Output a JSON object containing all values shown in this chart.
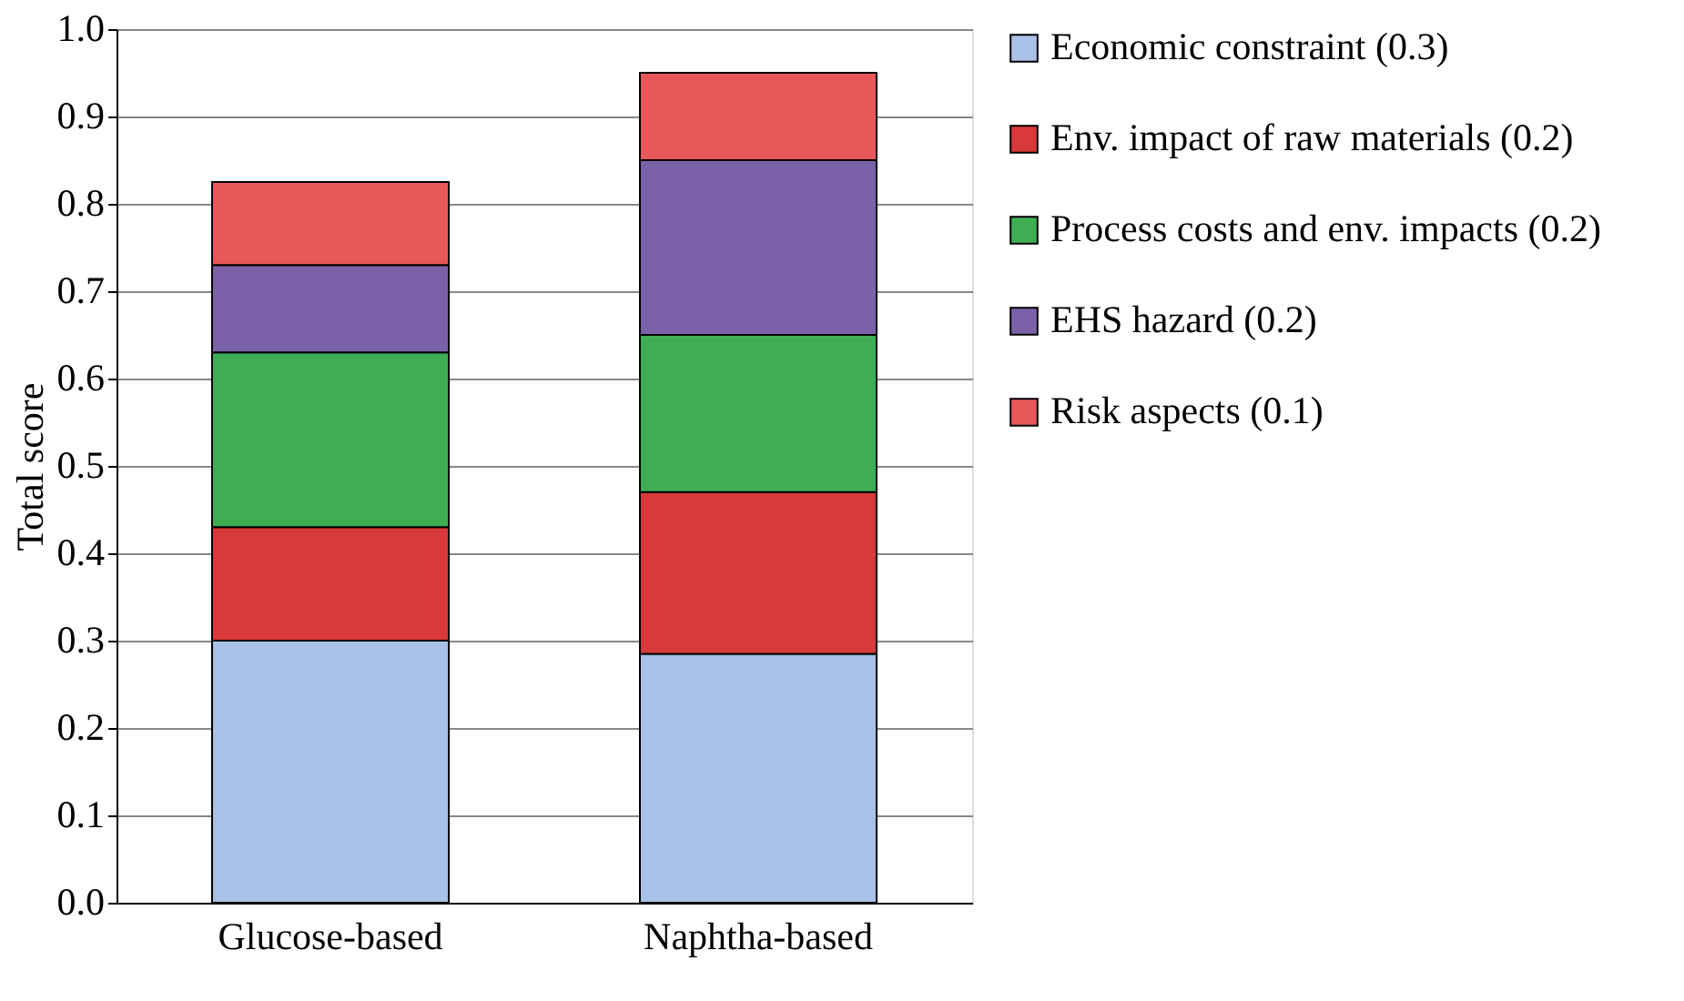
{
  "chart_data": {
    "type": "bar",
    "stacked": true,
    "ylabel": "Total score",
    "categories": [
      "Glucose-based",
      "Naphtha-based"
    ],
    "series": [
      {
        "name": "Economic constraint (0.3)",
        "color": "#a9c1e6",
        "values": [
          0.3,
          0.285
        ]
      },
      {
        "name": "Env. impact of raw materials (0.2)",
        "color": "#d9393b",
        "values": [
          0.13,
          0.185
        ]
      },
      {
        "name": "Process costs and env. impacts (0.2)",
        "color": "#3fae52",
        "values": [
          0.2,
          0.18
        ]
      },
      {
        "name": "EHS hazard (0.2)",
        "color": "#7b62a8",
        "values": [
          0.1,
          0.2
        ]
      },
      {
        "name": "Risk aspects (0.1)",
        "color": "#e8585a",
        "values": [
          0.095,
          0.1
        ]
      }
    ],
    "ylim": [
      0,
      1.0
    ],
    "yticks": [
      {
        "value": 0,
        "label": "0.0"
      },
      0.1,
      0.2,
      0.3,
      0.4,
      0.5,
      0.6,
      0.7,
      0.8,
      0.9,
      {
        "value": 1,
        "label": "1.0"
      }
    ],
    "grid": "y",
    "legend": "right"
  }
}
